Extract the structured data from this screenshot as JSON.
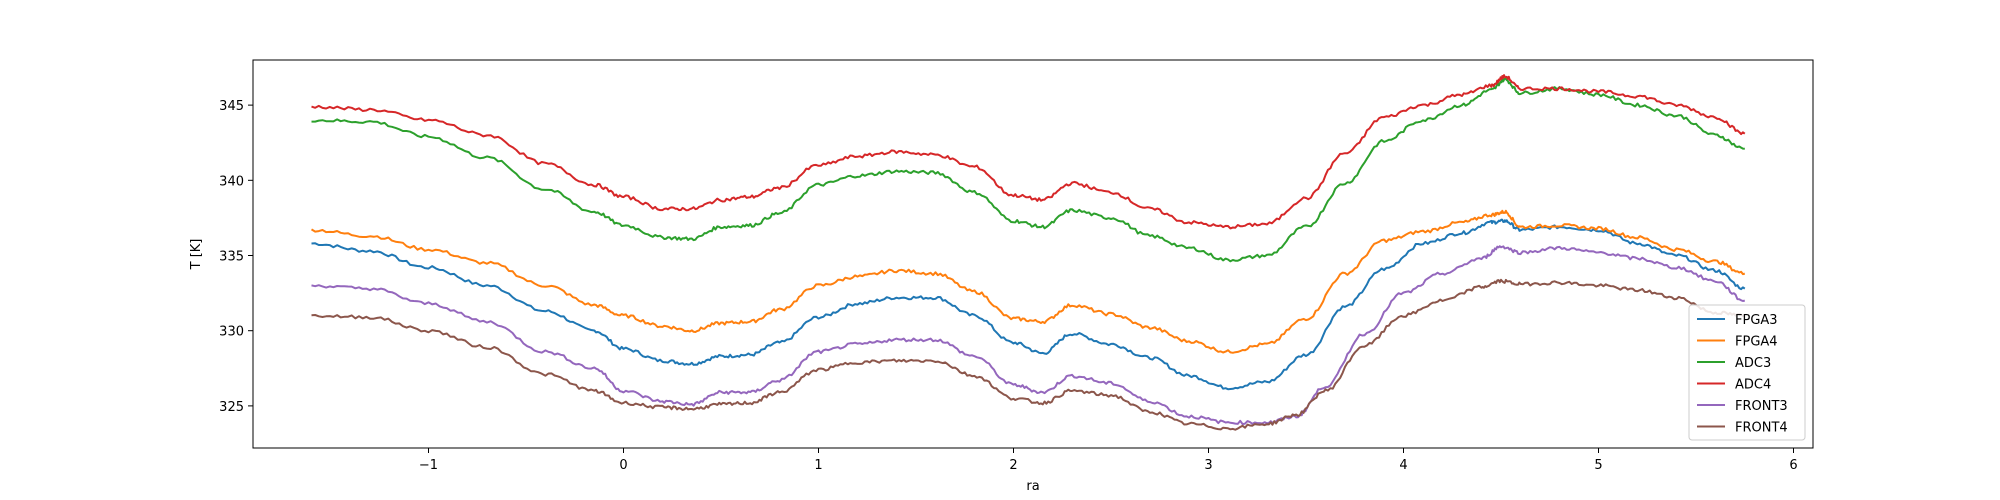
{
  "chart_data": {
    "type": "line",
    "title": "",
    "xlabel": "ra",
    "ylabel": "T [K]",
    "xlim": [
      -1.9,
      6.1
    ],
    "ylim": [
      322.2,
      348.0
    ],
    "xticks": [
      -1,
      0,
      1,
      2,
      3,
      4,
      5,
      6
    ],
    "yticks": [
      325,
      330,
      335,
      340,
      345
    ],
    "grid": false,
    "legend_position": "lower-right",
    "series": [
      {
        "name": "FPGA3",
        "color": "#1f77b4",
        "x": [
          -1.6,
          -1.3,
          -1.0,
          -0.7,
          -0.4,
          -0.15,
          0.0,
          0.2,
          0.35,
          0.5,
          0.65,
          0.8,
          1.0,
          1.2,
          1.4,
          1.6,
          1.8,
          2.0,
          2.15,
          2.3,
          2.5,
          2.7,
          2.9,
          3.1,
          3.3,
          3.5,
          3.7,
          3.9,
          4.1,
          4.3,
          4.45,
          4.52,
          4.6,
          4.8,
          5.0,
          5.2,
          5.4,
          5.6,
          5.75
        ],
        "y": [
          335.8,
          335.3,
          334.2,
          333.0,
          331.3,
          330.0,
          328.8,
          328.0,
          327.8,
          328.3,
          328.4,
          329.2,
          330.9,
          331.8,
          332.2,
          332.2,
          331.0,
          329.2,
          328.5,
          329.8,
          329.1,
          328.2,
          327.0,
          326.2,
          326.6,
          328.4,
          331.6,
          334.1,
          335.8,
          336.5,
          337.2,
          337.3,
          336.7,
          336.9,
          336.7,
          335.8,
          335.0,
          334.0,
          332.8
        ]
      },
      {
        "name": "FPGA4",
        "color": "#ff7f0e",
        "x": [
          -1.6,
          -1.3,
          -1.0,
          -0.7,
          -0.4,
          -0.15,
          0.0,
          0.2,
          0.35,
          0.5,
          0.65,
          0.8,
          1.0,
          1.2,
          1.4,
          1.6,
          1.8,
          2.0,
          2.15,
          2.3,
          2.5,
          2.7,
          2.9,
          3.1,
          3.3,
          3.5,
          3.7,
          3.9,
          4.1,
          4.3,
          4.45,
          4.52,
          4.6,
          4.8,
          5.0,
          5.2,
          5.4,
          5.6,
          5.75
        ],
        "y": [
          336.7,
          336.3,
          335.4,
          334.5,
          333.0,
          331.7,
          331.0,
          330.3,
          330.0,
          330.5,
          330.6,
          331.4,
          333.0,
          333.6,
          334.0,
          333.8,
          332.6,
          330.8,
          330.6,
          331.7,
          331.1,
          330.2,
          329.3,
          328.6,
          329.1,
          330.8,
          333.8,
          336.0,
          336.6,
          337.2,
          337.7,
          337.9,
          336.9,
          337.0,
          336.8,
          336.2,
          335.4,
          334.6,
          333.8
        ]
      },
      {
        "name": "ADC3",
        "color": "#2ca02c",
        "x": [
          -1.6,
          -1.3,
          -1.0,
          -0.7,
          -0.4,
          -0.15,
          0.0,
          0.2,
          0.35,
          0.5,
          0.65,
          0.8,
          1.0,
          1.2,
          1.4,
          1.6,
          1.8,
          2.0,
          2.15,
          2.3,
          2.5,
          2.7,
          2.9,
          3.1,
          3.3,
          3.5,
          3.7,
          3.9,
          4.1,
          4.3,
          4.45,
          4.52,
          4.6,
          4.8,
          5.0,
          5.2,
          5.4,
          5.6,
          5.75
        ],
        "y": [
          344.0,
          343.9,
          342.9,
          341.5,
          339.4,
          337.9,
          337.0,
          336.2,
          336.1,
          336.9,
          337.0,
          337.8,
          339.7,
          340.3,
          340.6,
          340.5,
          339.2,
          337.3,
          336.9,
          338.0,
          337.5,
          336.3,
          335.5,
          334.7,
          335.0,
          336.9,
          339.8,
          342.6,
          344.0,
          345.0,
          346.0,
          346.7,
          345.8,
          346.1,
          345.7,
          345.0,
          344.3,
          343.0,
          342.1
        ]
      },
      {
        "name": "ADC4",
        "color": "#d62728",
        "x": [
          -1.6,
          -1.3,
          -1.0,
          -0.7,
          -0.4,
          -0.15,
          0.0,
          0.2,
          0.35,
          0.5,
          0.65,
          0.8,
          1.0,
          1.2,
          1.4,
          1.6,
          1.8,
          2.0,
          2.15,
          2.3,
          2.5,
          2.7,
          2.9,
          3.1,
          3.3,
          3.5,
          3.7,
          3.9,
          4.1,
          4.3,
          4.45,
          4.52,
          4.6,
          4.8,
          5.0,
          5.2,
          5.4,
          5.6,
          5.75
        ],
        "y": [
          344.9,
          344.7,
          344.0,
          343.0,
          341.1,
          339.7,
          338.9,
          338.1,
          338.1,
          338.7,
          338.9,
          339.5,
          341.0,
          341.6,
          341.9,
          341.7,
          340.9,
          339.0,
          338.7,
          339.8,
          339.2,
          338.1,
          337.2,
          336.9,
          337.1,
          338.8,
          341.8,
          344.2,
          345.0,
          345.7,
          346.3,
          346.9,
          346.1,
          346.1,
          345.9,
          345.6,
          345.0,
          344.2,
          343.1
        ]
      },
      {
        "name": "FRONT3",
        "color": "#9467bd",
        "x": [
          -1.6,
          -1.3,
          -1.0,
          -0.7,
          -0.4,
          -0.15,
          0.0,
          0.2,
          0.35,
          0.5,
          0.65,
          0.8,
          1.0,
          1.2,
          1.4,
          1.6,
          1.8,
          2.0,
          2.15,
          2.3,
          2.5,
          2.7,
          2.9,
          3.1,
          3.3,
          3.45,
          3.6,
          3.8,
          4.0,
          4.2,
          4.4,
          4.5,
          4.6,
          4.8,
          5.0,
          5.2,
          5.4,
          5.6,
          5.75
        ],
        "y": [
          333.0,
          332.8,
          331.8,
          330.6,
          328.6,
          327.5,
          326.0,
          325.3,
          325.1,
          325.9,
          325.9,
          326.7,
          328.6,
          329.1,
          329.4,
          329.4,
          328.3,
          326.4,
          325.9,
          327.0,
          326.5,
          325.3,
          324.3,
          323.9,
          323.9,
          324.3,
          326.3,
          329.8,
          332.5,
          333.8,
          334.8,
          335.6,
          335.2,
          335.5,
          335.2,
          334.8,
          334.2,
          333.3,
          332.0
        ]
      },
      {
        "name": "FRONT4",
        "color": "#8c564b",
        "x": [
          -1.6,
          -1.3,
          -1.0,
          -0.7,
          -0.4,
          -0.15,
          0.0,
          0.2,
          0.35,
          0.5,
          0.65,
          0.8,
          1.0,
          1.2,
          1.4,
          1.6,
          1.8,
          2.0,
          2.15,
          2.3,
          2.5,
          2.7,
          2.9,
          3.1,
          3.3,
          3.45,
          3.6,
          3.8,
          4.0,
          4.2,
          4.4,
          4.5,
          4.6,
          4.8,
          5.0,
          5.2,
          5.4,
          5.6,
          5.75
        ],
        "y": [
          331.0,
          330.9,
          330.0,
          328.9,
          327.1,
          326.0,
          325.2,
          324.9,
          324.8,
          325.1,
          325.2,
          325.9,
          327.4,
          327.9,
          328.0,
          328.0,
          327.0,
          325.5,
          325.2,
          326.0,
          325.7,
          324.6,
          323.8,
          323.5,
          323.8,
          324.4,
          326.0,
          329.0,
          331.0,
          332.0,
          332.9,
          333.3,
          333.1,
          333.2,
          333.0,
          332.7,
          332.2,
          331.2,
          331.0
        ]
      }
    ]
  }
}
